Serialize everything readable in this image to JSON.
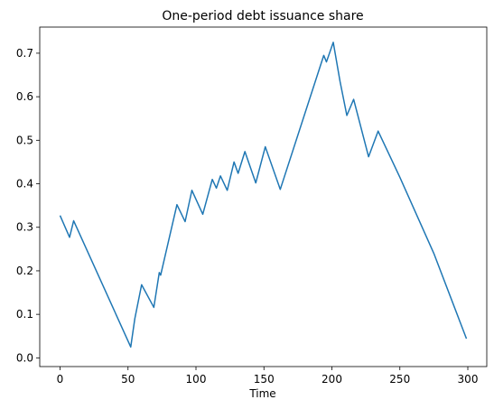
{
  "chart_data": {
    "type": "line",
    "title": "One-period debt issuance share",
    "xlabel": "Time",
    "x": [
      0,
      7,
      10,
      52,
      55,
      60,
      69,
      73,
      74,
      86,
      92,
      97,
      105,
      112,
      115,
      118,
      123,
      128,
      131,
      136,
      144,
      151,
      162,
      194,
      196,
      201,
      206,
      211,
      216,
      227,
      234,
      250,
      275,
      299
    ],
    "series": [
      {
        "name": "One-period debt issuance share",
        "color": "#1f77b4",
        "values": [
          0.327,
          0.277,
          0.315,
          0.025,
          0.09,
          0.168,
          0.116,
          0.196,
          0.19,
          0.352,
          0.313,
          0.385,
          0.33,
          0.41,
          0.39,
          0.418,
          0.385,
          0.45,
          0.424,
          0.474,
          0.402,
          0.485,
          0.387,
          0.695,
          0.68,
          0.725,
          0.635,
          0.557,
          0.594,
          0.462,
          0.521,
          0.415,
          0.24,
          0.044
        ]
      }
    ],
    "xlim": [
      -14.95,
      313.95
    ],
    "xticks": [
      0,
      50,
      100,
      150,
      200,
      250,
      300
    ],
    "ylim": [
      -0.02,
      0.76
    ],
    "yticks": [
      {
        "value": 0,
        "label": "0.0"
      },
      0.1,
      0.2,
      0.3,
      0.4,
      0.5,
      0.6,
      0.7
    ],
    "grid": false
  }
}
